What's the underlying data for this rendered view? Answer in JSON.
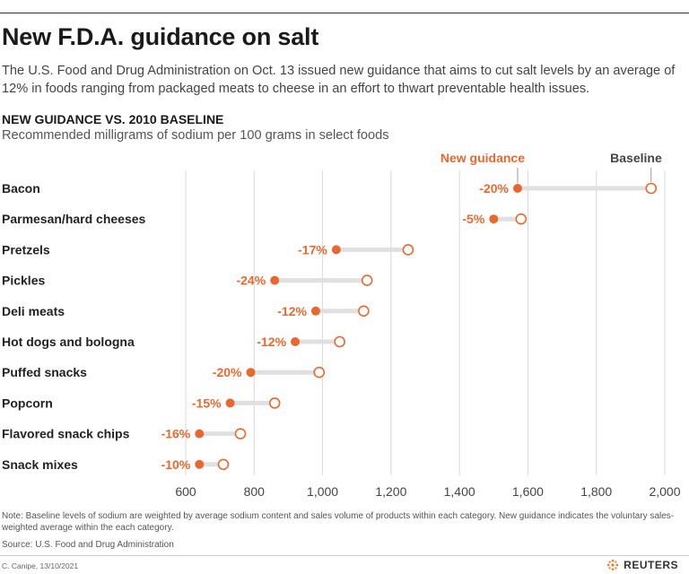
{
  "title": "New F.D.A. guidance on salt",
  "intro": "The U.S. Food and Drug Administration on Oct. 13 issued new guidance that aims to cut salt levels by an average of 12% in foods ranging from packaged meats to cheese in an effort to thwart preventable health issues.",
  "note": "Note: Baseline levels of sodium are weighted by average sodium content and sales volume of products within each category. New guidance indicates the voluntary sales-weighted average within the each category.",
  "source": "Source: U.S. Food and Drug Administration",
  "credit": "C. Canipe, 13/10/2021",
  "brand": "REUTERS",
  "colors": {
    "accent": "#e8692f",
    "connector": "#e0e0e0",
    "grid": "#d9d9d9"
  },
  "chart_data": {
    "type": "dumbbell",
    "title": "NEW GUIDANCE VS. 2010 BASELINE",
    "subtitle": "Recommended milligrams of sodium per 100 grams in select foods",
    "xlim": [
      600,
      2000
    ],
    "xticks": [
      600,
      800,
      1000,
      1200,
      1400,
      1600,
      1800,
      2000
    ],
    "xtick_labels": [
      "600",
      "800",
      "1,000",
      "1,200",
      "1,400",
      "1,600",
      "1,800",
      "2,000"
    ],
    "grid": true,
    "legend": {
      "new": "New guidance",
      "baseline": "Baseline"
    },
    "categories": [
      "Bacon",
      "Parmesan/hard cheeses",
      "Pretzels",
      "Pickles",
      "Deli meats",
      "Hot dogs and bologna",
      "Puffed snacks",
      "Popcorn",
      "Flavored snack chips",
      "Snack mixes"
    ],
    "series": [
      {
        "name": "New guidance",
        "values": [
          1570,
          1500,
          1040,
          860,
          980,
          920,
          790,
          730,
          640,
          640
        ]
      },
      {
        "name": "Baseline",
        "values": [
          1960,
          1580,
          1250,
          1130,
          1120,
          1050,
          990,
          860,
          760,
          710
        ]
      }
    ],
    "change_labels": [
      "-20%",
      "-5%",
      "-17%",
      "-24%",
      "-12%",
      "-12%",
      "-20%",
      "-15%",
      "-16%",
      "-10%"
    ]
  }
}
